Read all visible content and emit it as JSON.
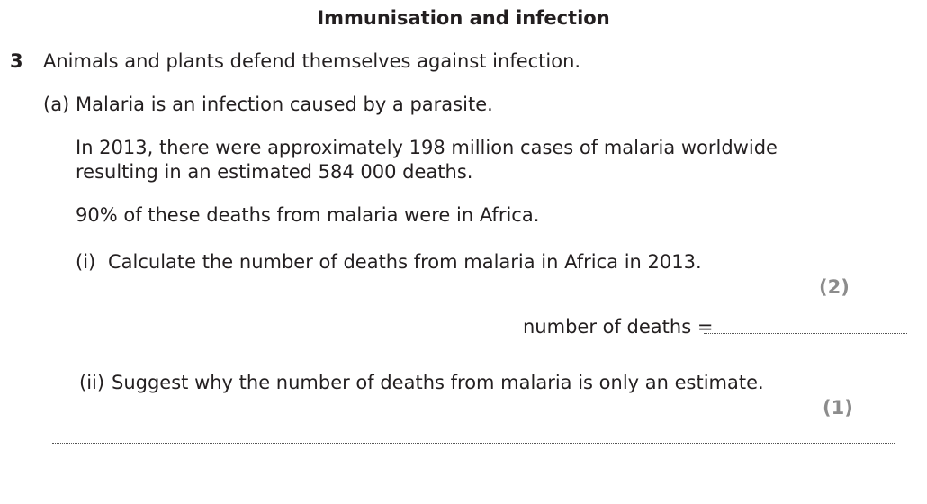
{
  "section_title": "Immunisation and infection",
  "question": {
    "number": "3",
    "stem": "Animals and plants defend themselves against infection.",
    "part_a": {
      "label": "(a)",
      "text": "Malaria is an infection caused by a parasite.",
      "info_line1": "In 2013, there were approximately 198 million cases of malaria worldwide",
      "info_line2": "resulting in an estimated 584 000 deaths.",
      "info_line3": "90% of these deaths from malaria were in Africa.",
      "sub_i": {
        "label": "(i)",
        "text": "Calculate the number of deaths from malaria in Africa in 2013.",
        "marks": "(2)",
        "answer_label": "number of deaths ="
      },
      "sub_ii": {
        "label": "(ii)",
        "text": "Suggest why the number of deaths from malaria is only an estimate.",
        "marks": "(1)"
      }
    }
  }
}
